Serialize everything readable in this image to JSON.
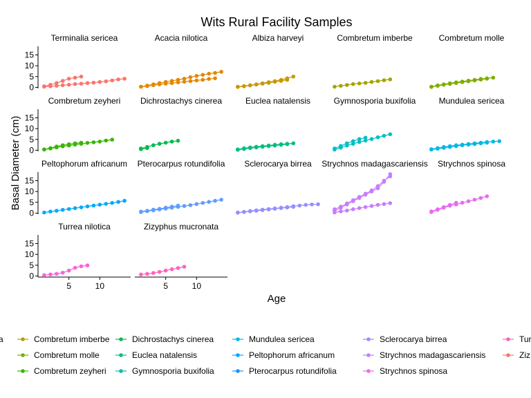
{
  "chart_data": {
    "type": "line",
    "title": "Wits Rural Facility Samples",
    "xlabel": "Age",
    "ylabel": "Basal Diameter (cm)",
    "ylim": [
      -0.5,
      19
    ],
    "xlim": [
      0,
      15
    ],
    "yticks": [
      0,
      5,
      10,
      15
    ],
    "xticks": [
      5,
      10
    ],
    "grid": false,
    "legend_position": "bottom",
    "panel_ids": [
      "Terminalia sericea",
      "Acacia nilotica",
      "Albiza harveyi",
      "Combretum imberbe",
      "Combretum molle",
      "Combretum zeyheri",
      "Dichrostachys cinerea",
      "Euclea natalensis",
      "Gymnosporia buxifolia",
      "Mundulea sericea",
      "Peltophorum africanum",
      "Pterocarpus rotundifolia",
      "Sclerocarya birrea",
      "Strychnos madagascariensis",
      "Strychnos spinosa",
      "Turrea nilotica",
      "Zizyphus mucronata"
    ],
    "legend_columns": [
      {
        "entries": [
          {
            "label": "a",
            "color": "#F8766D"
          }
        ]
      },
      {
        "entries": [
          {
            "label": "Combretum imberbe",
            "color": "#B79F00"
          },
          {
            "label": "Combretum molle",
            "color": "#7CAE00"
          },
          {
            "label": "Combretum zeyheri",
            "color": "#39B600"
          }
        ]
      },
      {
        "entries": [
          {
            "label": "Dichrostachys cinerea",
            "color": "#00BB4E"
          },
          {
            "label": "Euclea natalensis",
            "color": "#00BF7D"
          },
          {
            "label": "Gymnosporia buxifolia",
            "color": "#00BFAA"
          }
        ]
      },
      {
        "entries": [
          {
            "label": "Mundulea sericea",
            "color": "#00B9E3"
          },
          {
            "label": "Peltophorum africanum",
            "color": "#00A9FF"
          },
          {
            "label": "Pterocarpus rotundifolia",
            "color": "#1F8FFF"
          }
        ]
      },
      {
        "entries": [
          {
            "label": "Sclerocarya birrea",
            "color": "#9590FF"
          },
          {
            "label": "Strychnos madagascariensis",
            "color": "#C77CFF"
          },
          {
            "label": "Strychnos spinosa",
            "color": "#E76BF3"
          }
        ]
      },
      {
        "entries": [
          {
            "label": "Tur",
            "color": "#FF62BC"
          },
          {
            "label": "Ziz",
            "color": "#F8766D"
          }
        ]
      }
    ],
    "panels": [
      {
        "label": "Terminalia sericea",
        "color": "#F8766D",
        "series": [
          {
            "x": [
              1,
              2,
              3,
              4,
              5,
              6,
              7
            ],
            "y": [
              0.5,
              1.2,
              2.0,
              3.0,
              4.0,
              4.5,
              5.0
            ]
          },
          {
            "x": [
              1,
              2,
              3,
              4,
              5,
              6,
              7,
              8,
              9,
              10,
              11,
              12,
              13,
              14
            ],
            "y": [
              0.3,
              0.5,
              0.7,
              1.0,
              1.2,
              1.5,
              1.7,
              2.0,
              2.2,
              2.5,
              2.8,
              3.2,
              3.7,
              4.0
            ]
          }
        ]
      },
      {
        "label": "Acacia nilotica",
        "color": "#E58700",
        "series": [
          {
            "x": [
              1,
              2,
              3,
              4,
              5,
              6,
              7,
              8,
              9,
              10,
              11,
              12,
              13,
              14
            ],
            "y": [
              0.3,
              0.8,
              1.4,
              2.0,
              2.5,
              3.0,
              3.5,
              4.0,
              4.7,
              5.3,
              5.8,
              6.3,
              6.7,
              7.2
            ]
          },
          {
            "x": [
              1,
              2,
              3,
              4,
              5,
              6,
              7,
              8,
              9,
              10,
              11,
              12,
              13
            ],
            "y": [
              0.3,
              0.6,
              1.0,
              1.4,
              1.7,
              2.0,
              2.3,
              2.6,
              2.9,
              3.2,
              3.5,
              3.9,
              4.2
            ]
          }
        ]
      },
      {
        "label": "Albiza harveyi",
        "color": "#C99800",
        "series": [
          {
            "x": [
              1,
              2,
              3,
              4,
              5,
              6,
              7,
              8,
              9,
              10
            ],
            "y": [
              0.3,
              0.6,
              1.0,
              1.4,
              1.9,
              2.4,
              2.9,
              3.5,
              4.2,
              5.0
            ]
          },
          {
            "x": [
              1,
              2,
              3,
              4,
              5,
              6,
              7,
              8,
              9
            ],
            "y": [
              0.2,
              0.5,
              0.9,
              1.3,
              1.7,
              2.1,
              2.6,
              3.0,
              3.5
            ]
          }
        ]
      },
      {
        "label": "Combretum imberbe",
        "color": "#A3A500",
        "series": [
          {
            "x": [
              1,
              2,
              3,
              4,
              5,
              6,
              7,
              8,
              9,
              10
            ],
            "y": [
              0.3,
              0.7,
              1.1,
              1.5,
              1.8,
              2.1,
              2.5,
              2.9,
              3.3,
              3.7
            ]
          }
        ]
      },
      {
        "label": "Combretum molle",
        "color": "#7CAE00",
        "series": [
          {
            "x": [
              1,
              2,
              3,
              4,
              5,
              6,
              7,
              8,
              9,
              10,
              11
            ],
            "y": [
              0.3,
              0.9,
              1.4,
              1.9,
              2.3,
              2.7,
              3.1,
              3.5,
              3.9,
              4.2,
              4.5
            ]
          },
          {
            "x": [
              1,
              2,
              3,
              4,
              5,
              6,
              7,
              8,
              9,
              10
            ],
            "y": [
              0.2,
              0.7,
              1.2,
              1.6,
              2.0,
              2.4,
              2.8,
              3.2,
              3.6,
              4.0
            ]
          }
        ]
      },
      {
        "label": "Combretum zeyheri",
        "color": "#39B600",
        "series": [
          {
            "x": [
              1,
              2,
              3,
              4,
              5,
              6,
              7,
              8,
              9,
              10,
              11,
              12
            ],
            "y": [
              0.3,
              0.8,
              1.3,
              1.8,
              2.2,
              2.6,
              3.0,
              3.4,
              3.7,
              4.0,
              4.5,
              4.9
            ]
          },
          {
            "x": [
              1,
              2,
              3,
              4,
              5,
              6,
              7
            ],
            "y": [
              0.4,
              1.0,
              1.7,
              2.3,
              2.8,
              3.2,
              3.5
            ]
          }
        ]
      },
      {
        "label": "Dichrostachys cinerea",
        "color": "#00BB4E",
        "series": [
          {
            "x": [
              1,
              2,
              3,
              4,
              5,
              6,
              7
            ],
            "y": [
              0.8,
              1.5,
              2.3,
              3.0,
              3.5,
              4.0,
              4.4
            ]
          },
          {
            "x": [
              1,
              2
            ],
            "y": [
              0.5,
              1.0
            ]
          }
        ]
      },
      {
        "label": "Euclea natalensis",
        "color": "#00BF7D",
        "series": [
          {
            "x": [
              1,
              2,
              3,
              4,
              5,
              6,
              7,
              8,
              9,
              10
            ],
            "y": [
              0.4,
              0.9,
              1.3,
              1.6,
              1.9,
              2.2,
              2.5,
              2.8,
              3.0,
              3.2
            ]
          },
          {
            "x": [
              1,
              2,
              3,
              4,
              5,
              6,
              7,
              8,
              9
            ],
            "y": [
              0.2,
              0.6,
              1.0,
              1.3,
              1.6,
              1.9,
              2.2,
              2.5,
              2.8
            ]
          }
        ]
      },
      {
        "label": "Gymnosporia buxifolia",
        "color": "#00BFC4",
        "series": [
          {
            "x": [
              1,
              2,
              3,
              4,
              5,
              6
            ],
            "y": [
              0.8,
              2.0,
              3.2,
              4.2,
              5.2,
              5.8
            ]
          },
          {
            "x": [
              1,
              2,
              3,
              4,
              5,
              6,
              7,
              8,
              9,
              10
            ],
            "y": [
              0.3,
              1.2,
              2.2,
              3.0,
              3.8,
              4.5,
              5.2,
              6.0,
              6.7,
              7.4
            ]
          }
        ]
      },
      {
        "label": "Mundulea sericea",
        "color": "#00B8E7",
        "series": [
          {
            "x": [
              1,
              2,
              3,
              4,
              5,
              6,
              7,
              8,
              9,
              10,
              11,
              12
            ],
            "y": [
              0.5,
              1.0,
              1.5,
              1.9,
              2.3,
              2.6,
              2.9,
              3.2,
              3.5,
              3.8,
              4.0,
              4.2
            ]
          },
          {
            "x": [
              1,
              2,
              3,
              4,
              5,
              6,
              7,
              8,
              9,
              10
            ],
            "y": [
              0.3,
              0.7,
              1.1,
              1.5,
              1.9,
              2.3,
              2.6,
              2.9,
              3.2,
              3.5
            ]
          }
        ]
      },
      {
        "label": "Peltophorum africanum",
        "color": "#00A9FF",
        "series": [
          {
            "x": [
              1,
              2,
              3,
              4,
              5,
              6,
              7,
              8,
              9,
              10,
              11,
              12,
              13,
              14
            ],
            "y": [
              0.3,
              0.7,
              1.1,
              1.5,
              1.9,
              2.3,
              2.7,
              3.1,
              3.5,
              3.9,
              4.3,
              4.7,
              5.2,
              5.7
            ]
          }
        ]
      },
      {
        "label": "Pterocarpus rotundifolia",
        "color": "#619CFF",
        "series": [
          {
            "x": [
              1,
              2,
              3,
              4,
              5,
              6,
              7,
              8,
              9,
              10,
              11,
              12,
              13,
              14
            ],
            "y": [
              0.5,
              0.9,
              1.3,
              1.7,
              2.1,
              2.5,
              2.9,
              3.3,
              3.7,
              4.2,
              4.7,
              5.2,
              5.7,
              6.2
            ]
          },
          {
            "x": [
              1,
              2,
              3,
              4,
              5,
              6,
              7
            ],
            "y": [
              0.7,
              1.1,
              1.6,
              2.0,
              2.5,
              3.0,
              3.5
            ]
          }
        ]
      },
      {
        "label": "Sclerocarya birrea",
        "color": "#9590FF",
        "series": [
          {
            "x": [
              1,
              2,
              3,
              4,
              5,
              6,
              7,
              8,
              9,
              10,
              11,
              12,
              13,
              14
            ],
            "y": [
              0.3,
              0.6,
              1.0,
              1.3,
              1.6,
              1.9,
              2.2,
              2.5,
              2.8,
              3.2,
              3.5,
              3.8,
              4.0,
              4.1
            ]
          },
          {
            "x": [
              1,
              2,
              3,
              4,
              5,
              6,
              7,
              8,
              9,
              10
            ],
            "y": [
              0.2,
              0.5,
              0.8,
              1.1,
              1.4,
              1.7,
              2.0,
              2.3,
              2.6,
              2.9
            ]
          }
        ]
      },
      {
        "label": "Strychnos madagascariensis",
        "color": "#C77CFF",
        "series": [
          {
            "x": [
              1,
              2,
              3,
              4,
              5,
              6,
              7,
              8,
              9,
              10
            ],
            "y": [
              1.0,
              2.5,
              4.0,
              5.5,
              7.0,
              8.5,
              10.0,
              11.5,
              14.5,
              18.0
            ]
          },
          {
            "x": [
              1,
              2,
              3,
              4,
              5,
              6,
              7,
              8,
              9,
              10
            ],
            "y": [
              1.8,
              3.0,
              4.5,
              6.0,
              7.5,
              9.0,
              10.5,
              12.5,
              15.0,
              17.0
            ]
          },
          {
            "x": [
              1,
              2,
              3,
              4,
              5,
              6,
              7,
              8,
              9,
              10
            ],
            "y": [
              0.3,
              0.8,
              1.2,
              1.8,
              2.3,
              2.8,
              3.3,
              3.8,
              4.2,
              4.6
            ]
          }
        ]
      },
      {
        "label": "Strychnos spinosa",
        "color": "#E76BF3",
        "series": [
          {
            "x": [
              1,
              2,
              3,
              4,
              5,
              6,
              7,
              8,
              9,
              10
            ],
            "y": [
              0.5,
              1.5,
              2.5,
              3.4,
              4.0,
              4.8,
              5.5,
              6.2,
              7.0,
              7.8
            ]
          },
          {
            "x": [
              1,
              2,
              3,
              4,
              5
            ],
            "y": [
              0.8,
              1.8,
              2.8,
              3.8,
              4.8
            ]
          }
        ]
      },
      {
        "label": "Turrea nilotica",
        "color": "#FA62DB",
        "series": [
          {
            "x": [
              1,
              2,
              3,
              4,
              5,
              6,
              7,
              8
            ],
            "y": [
              0.4,
              0.7,
              1.0,
              1.5,
              2.5,
              3.8,
              4.5,
              4.9
            ]
          }
        ]
      },
      {
        "label": "Zizyphus mucronata",
        "color": "#FF62BC",
        "series": [
          {
            "x": [
              1,
              2,
              3,
              4,
              5,
              6,
              7,
              8
            ],
            "y": [
              0.7,
              1.0,
              1.4,
              1.9,
              2.5,
              3.1,
              3.7,
              4.3
            ]
          }
        ]
      }
    ]
  }
}
